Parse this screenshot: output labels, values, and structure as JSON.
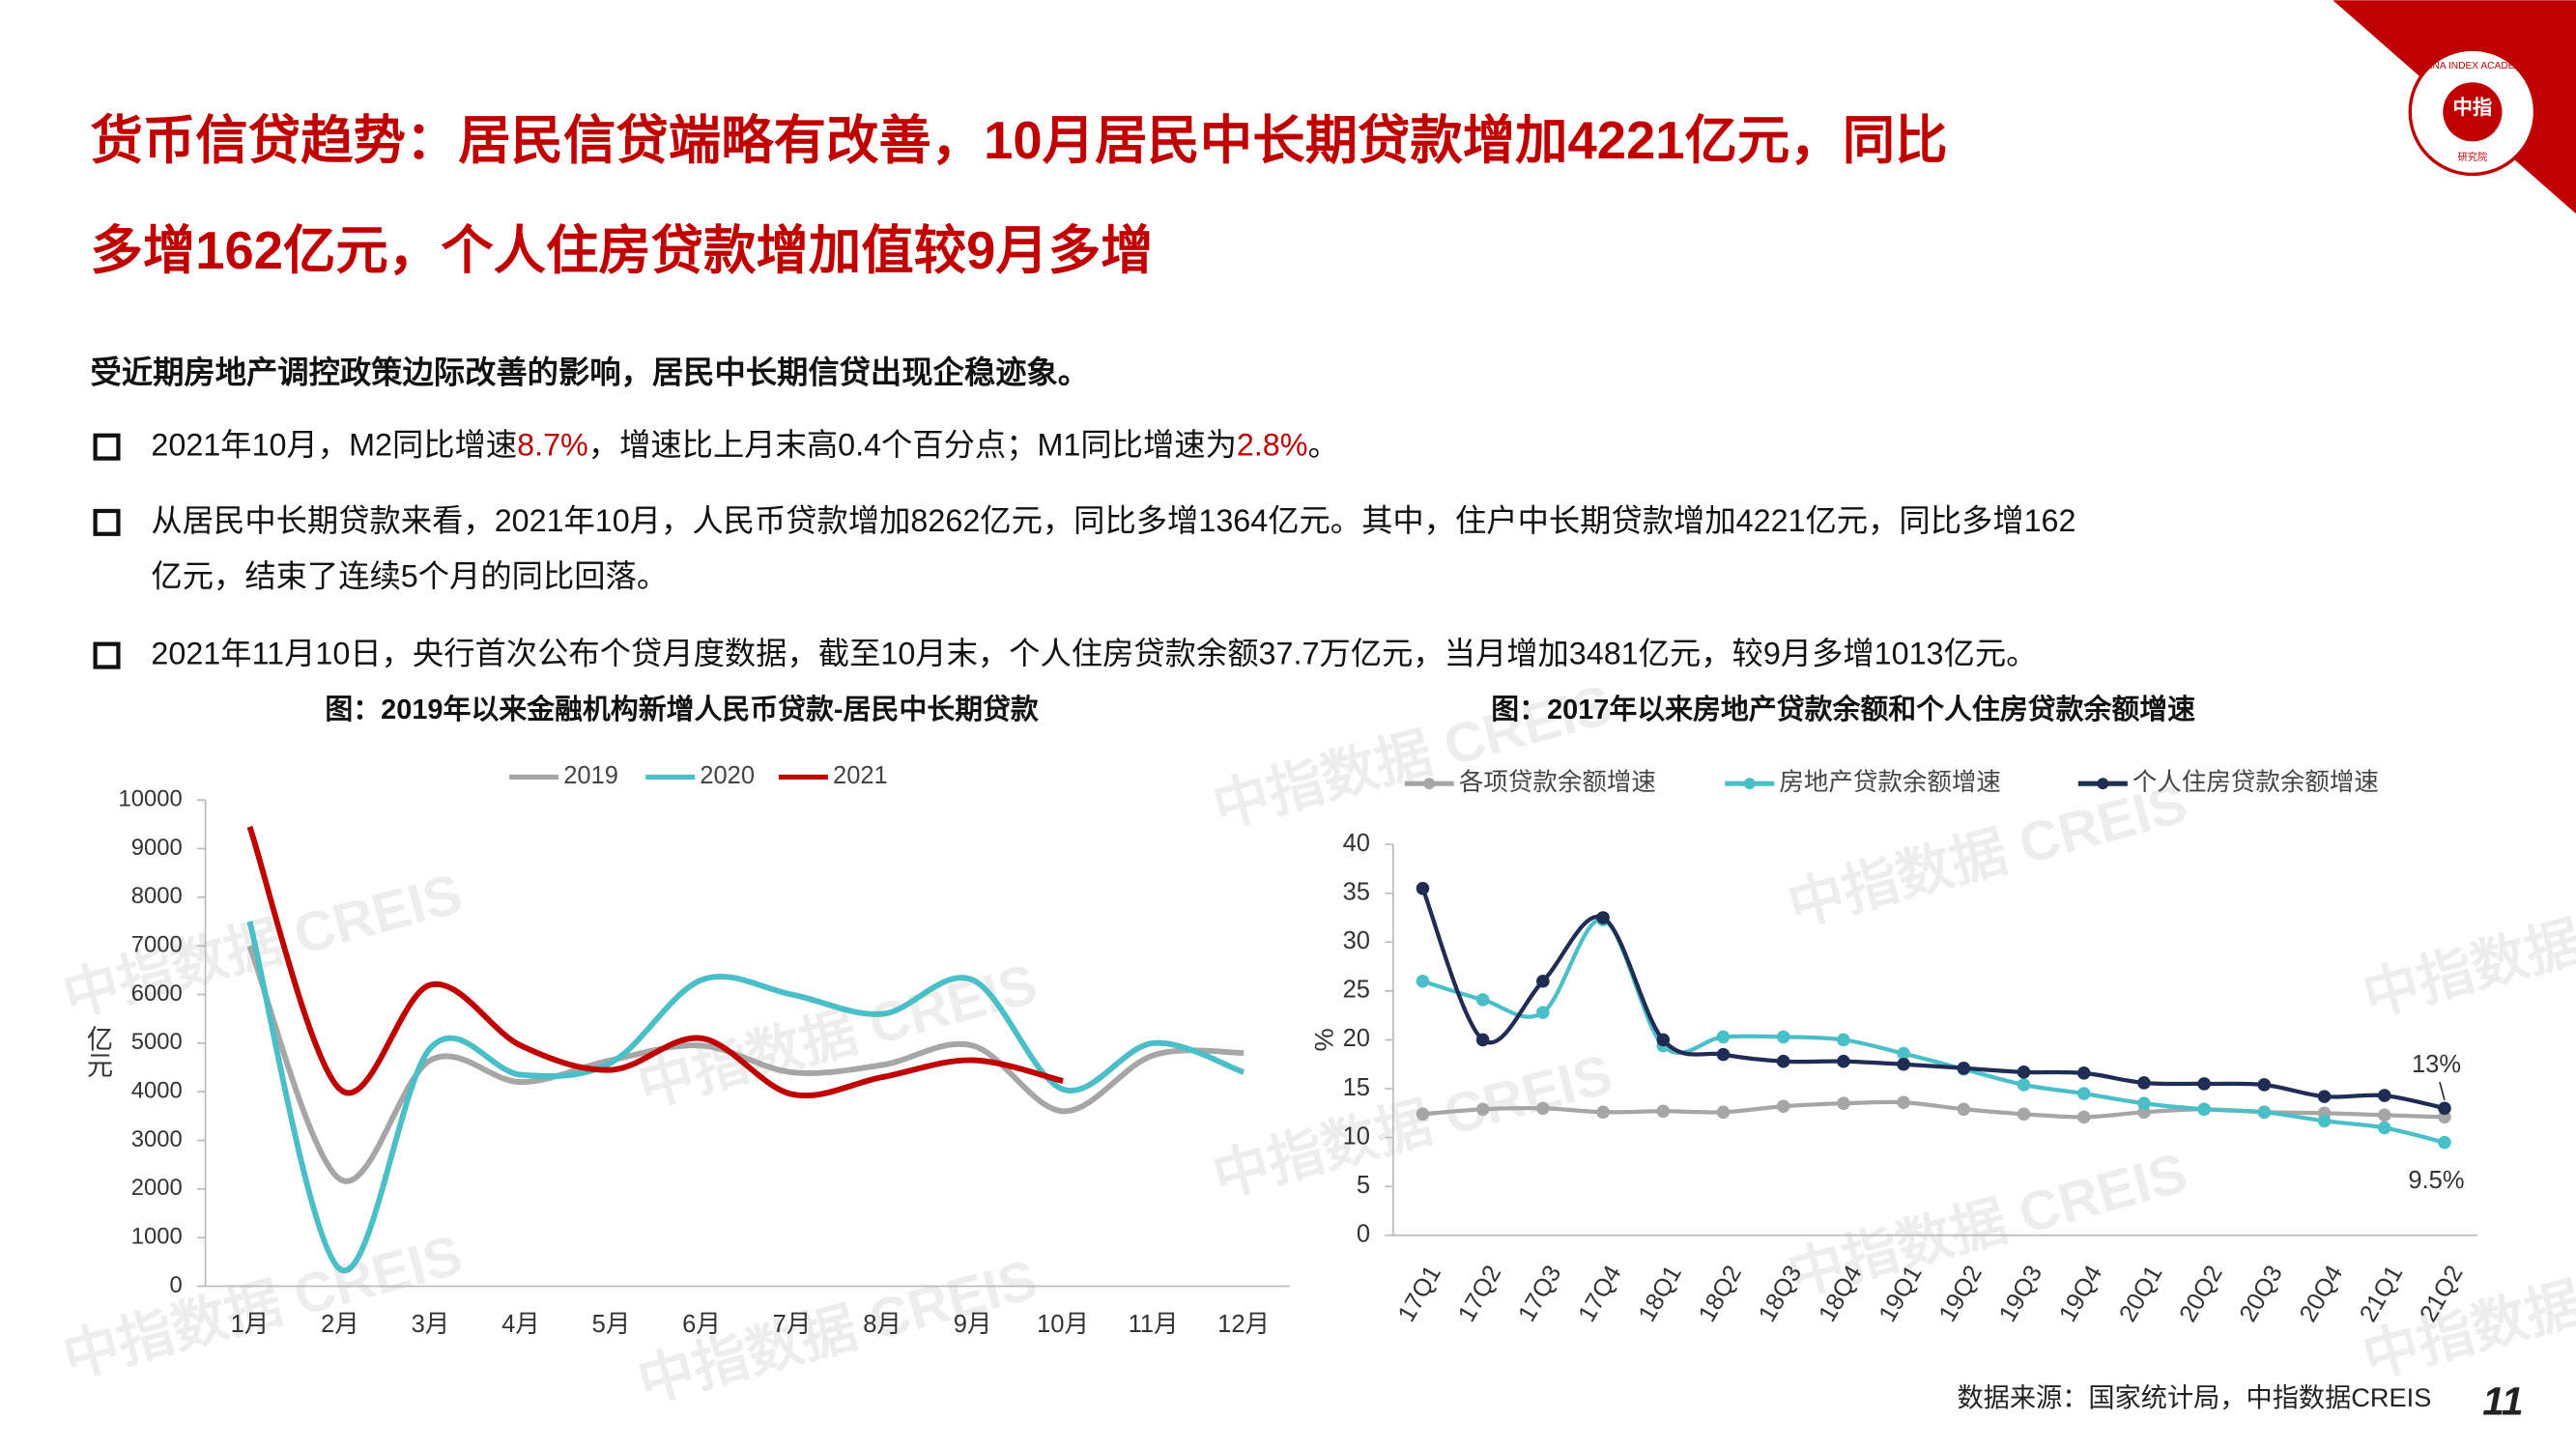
{
  "title_lines": [
    "货币信贷趋势：居民信贷端略有改善，10月居民中长期贷款增加4221亿元，同比",
    "多增162亿元，个人住房贷款增加值较9月多增"
  ],
  "intro": "受近期房地产调控政策边际改善的影响，居民中长期信贷出现企稳迹象。",
  "bullets": [
    [
      [
        {
          "text": "2021年10月，M2同比增速"
        },
        {
          "text": "8.7%",
          "color": "#c00000"
        },
        {
          "text": "，增速比上月末高0.4个百分点；M1同比增速为"
        },
        {
          "text": "2.8%",
          "color": "#c00000"
        },
        {
          "text": "。"
        }
      ]
    ],
    [
      [
        {
          "text": "从居民中长期贷款来看，2021年10月，人民币贷款增加8262亿元，同比多增1364亿元。其中，住户中长期贷款增加4221亿元，同比多增162"
        }
      ],
      [
        {
          "text": "亿元，结束了连续5个月的同比回落。"
        }
      ]
    ],
    [
      [
        {
          "text": "2021年11月10日，央行首次公布个贷月度数据，截至10月末，个人住房贷款余额37.7万亿元，当月增加3481亿元，较9月多增1013亿元。"
        }
      ]
    ]
  ],
  "watermark": "中指数据 CREIS",
  "logo": {
    "center": "中指",
    "ring": "CHINA INDEX ACADEMY",
    "bottom": "研究院"
  },
  "source": "数据来源：国家统计局，中指数据CREIS",
  "page_number": "11",
  "chart_data": [
    {
      "type": "line",
      "title": "图：2019年以来金融机构新增人民币贷款-居民中长期贷款",
      "y_label": "亿元",
      "categories": [
        "1月",
        "2月",
        "3月",
        "4月",
        "5月",
        "6月",
        "7月",
        "8月",
        "9月",
        "10月",
        "11月",
        "12月"
      ],
      "series": [
        {
          "name": "2019",
          "color": "#a6a6a6",
          "values": [
            7000,
            2200,
            4650,
            4200,
            4650,
            4950,
            4400,
            4550,
            4950,
            3600,
            4750,
            4800
          ]
        },
        {
          "name": "2020",
          "color": "#4bbfc7",
          "values": [
            7500,
            350,
            4900,
            4350,
            4600,
            6300,
            6000,
            5600,
            6300,
            4050,
            5000,
            4400
          ]
        },
        {
          "name": "2021",
          "color": "#c00000",
          "values": [
            9450,
            4050,
            6200,
            4950,
            4450,
            5100,
            3950,
            4300,
            4650,
            4221,
            null,
            null
          ]
        }
      ],
      "ylim": [
        0,
        10000
      ],
      "yticks": [
        0,
        1000,
        2000,
        3000,
        4000,
        5000,
        6000,
        7000,
        8000,
        9000,
        10000
      ],
      "legend": "top",
      "smooth": true
    },
    {
      "type": "line",
      "title": "图：2017年以来房地产贷款余额和个人住房贷款余额增速",
      "y_label": "%",
      "categories": [
        "17Q1",
        "17Q2",
        "17Q3",
        "17Q4",
        "18Q1",
        "18Q2",
        "18Q3",
        "18Q4",
        "19Q1",
        "19Q2",
        "19Q3",
        "19Q4",
        "20Q1",
        "20Q2",
        "20Q3",
        "20Q4",
        "21Q1",
        "21Q2"
      ],
      "series": [
        {
          "name": "各项贷款余额增速",
          "color": "#a6a6a6",
          "values": [
            12.4,
            12.9,
            13.0,
            12.6,
            12.7,
            12.6,
            13.2,
            13.5,
            13.6,
            12.9,
            12.4,
            12.1,
            12.6,
            12.9,
            12.6,
            12.5,
            12.3,
            12.1
          ]
        },
        {
          "name": "房地产贷款余额增速",
          "color": "#4bbfc7",
          "values": [
            26.0,
            24.1,
            22.8,
            32.3,
            19.4,
            20.3,
            20.3,
            20.0,
            18.6,
            17.0,
            15.4,
            14.5,
            13.5,
            12.9,
            12.6,
            11.7,
            11.0,
            9.5
          ],
          "value_labels": [
            null,
            null,
            null,
            null,
            null,
            null,
            null,
            null,
            null,
            null,
            null,
            null,
            null,
            null,
            null,
            null,
            null,
            "9.5%"
          ]
        },
        {
          "name": "个人住房贷款余额增速",
          "color": "#1f2d55",
          "values": [
            35.5,
            20.0,
            26.0,
            32.5,
            20.0,
            18.5,
            17.8,
            17.8,
            17.5,
            17.1,
            16.7,
            16.6,
            15.6,
            15.5,
            15.4,
            14.2,
            14.3,
            13.0
          ],
          "value_labels": [
            null,
            null,
            null,
            null,
            null,
            null,
            null,
            null,
            null,
            null,
            null,
            null,
            null,
            null,
            null,
            null,
            null,
            "13%"
          ]
        }
      ],
      "ylim": [
        0,
        40
      ],
      "yticks": [
        0,
        5,
        10,
        15,
        20,
        25,
        30,
        35,
        40
      ],
      "legend": "top",
      "markers": true,
      "smooth": true
    }
  ]
}
